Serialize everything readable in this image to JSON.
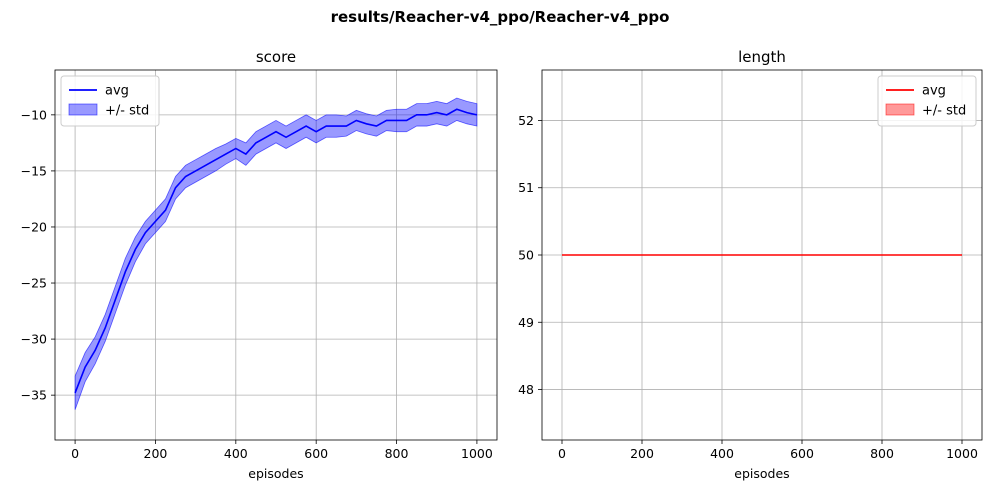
{
  "figure": {
    "suptitle": "results/Reacher-v4_ppo/Reacher-v4_ppo"
  },
  "chart_data": [
    {
      "type": "line",
      "title": "score",
      "xlabel": "episodes",
      "ylabel": "",
      "xlim": [
        -50,
        1050
      ],
      "ylim": [
        -39.0,
        -6.0
      ],
      "xticks": [
        0,
        200,
        400,
        600,
        800,
        1000
      ],
      "yticks": [
        -35,
        -30,
        -25,
        -20,
        -15,
        -10
      ],
      "grid": true,
      "legend_placement": "upper left",
      "series": [
        {
          "name": "avg",
          "color": "#0000ff",
          "kind": "line"
        },
        {
          "name": "+/- std",
          "color": "#0000ff",
          "kind": "band",
          "alpha": 0.4
        }
      ],
      "x": [
        0,
        25,
        50,
        75,
        100,
        125,
        150,
        175,
        200,
        225,
        250,
        275,
        300,
        325,
        350,
        375,
        400,
        425,
        450,
        475,
        500,
        525,
        550,
        575,
        600,
        625,
        650,
        675,
        700,
        725,
        750,
        775,
        800,
        825,
        850,
        875,
        900,
        925,
        950,
        975,
        1000
      ],
      "avg": [
        -34.8,
        -32.5,
        -31.0,
        -29.0,
        -26.5,
        -24.0,
        -22.0,
        -20.5,
        -19.5,
        -18.5,
        -16.5,
        -15.5,
        -15.0,
        -14.5,
        -14.0,
        -13.5,
        -13.0,
        -13.5,
        -12.5,
        -12.0,
        -11.5,
        -12.0,
        -11.5,
        -11.0,
        -11.5,
        -11.0,
        -11.0,
        -11.0,
        -10.5,
        -10.8,
        -11.0,
        -10.5,
        -10.5,
        -10.5,
        -10.0,
        -10.0,
        -9.8,
        -10.0,
        -9.5,
        -9.8,
        -10.0
      ],
      "std": [
        1.5,
        1.3,
        1.2,
        1.2,
        1.2,
        1.2,
        1.1,
        1.0,
        1.0,
        1.0,
        1.0,
        1.0,
        1.0,
        1.0,
        1.0,
        0.9,
        0.9,
        1.0,
        1.0,
        1.0,
        1.0,
        1.0,
        1.0,
        1.0,
        1.0,
        1.0,
        1.0,
        0.9,
        0.9,
        0.9,
        0.9,
        0.9,
        1.0,
        1.0,
        1.0,
        1.0,
        1.0,
        1.0,
        1.0,
        1.0,
        1.0
      ]
    },
    {
      "type": "line",
      "title": "length",
      "xlabel": "episodes",
      "ylabel": "",
      "xlim": [
        -50,
        1050
      ],
      "ylim": [
        47.25,
        52.75
      ],
      "xticks": [
        0,
        200,
        400,
        600,
        800,
        1000
      ],
      "yticks": [
        48,
        49,
        50,
        51,
        52
      ],
      "grid": true,
      "legend_placement": "upper right",
      "series": [
        {
          "name": "avg",
          "color": "#ff0000",
          "kind": "line"
        },
        {
          "name": "+/- std",
          "color": "#ff0000",
          "kind": "band",
          "alpha": 0.4
        }
      ],
      "x": [
        0,
        1000
      ],
      "avg": [
        50,
        50
      ],
      "std": [
        0,
        0
      ]
    }
  ]
}
